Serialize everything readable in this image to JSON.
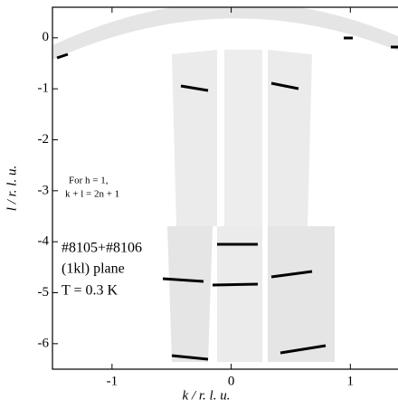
{
  "chart_data": {
    "type": "map",
    "xlabel": "k / r. l. u.",
    "ylabel": "l / r. l. u.",
    "xlim": [
      -1.5,
      1.4
    ],
    "ylim": [
      -6.5,
      0.6
    ],
    "xticks": [
      -1,
      0,
      1
    ],
    "yticks": [
      0,
      -1,
      -2,
      -3,
      -4,
      -5,
      -6
    ],
    "annotations": [
      "For h = 1,",
      "k + l = 2n + 1",
      "#8105+#8106",
      "(1kl) plane",
      "T = 0.3 K"
    ]
  }
}
